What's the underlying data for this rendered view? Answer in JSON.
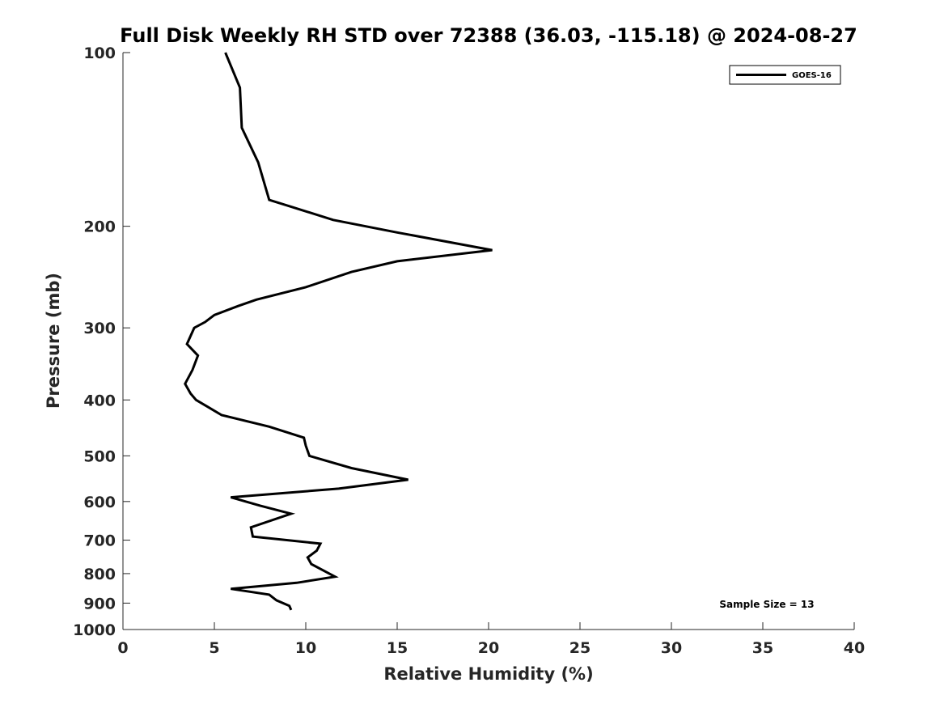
{
  "chart_data": {
    "type": "line",
    "title": "Full Disk Weekly RH STD over 72388 (36.03, -115.18) @ 2024-08-27",
    "xlabel": "Relative Humidity (%)",
    "ylabel": "Pressure (mb)",
    "xlim": [
      0,
      40
    ],
    "ylim": [
      100,
      1000
    ],
    "y_scale": "log",
    "y_reversed": true,
    "x_ticks": [
      0,
      5,
      10,
      15,
      20,
      25,
      30,
      35,
      40
    ],
    "y_ticks": [
      100,
      200,
      300,
      400,
      500,
      600,
      700,
      800,
      900,
      1000
    ],
    "legend_position": "top-right",
    "annotation": "Sample Size = 13",
    "series": [
      {
        "name": "GOES-16",
        "color": "#000000",
        "points": [
          [
            5.6,
            100
          ],
          [
            6.4,
            115
          ],
          [
            6.5,
            135
          ],
          [
            7.4,
            155
          ],
          [
            8.0,
            180
          ],
          [
            11.5,
            195
          ],
          [
            15.0,
            205
          ],
          [
            20.2,
            220
          ],
          [
            15.0,
            230
          ],
          [
            12.5,
            240
          ],
          [
            10.0,
            255
          ],
          [
            7.3,
            268
          ],
          [
            6.3,
            275
          ],
          [
            5.0,
            285
          ],
          [
            4.5,
            293
          ],
          [
            3.9,
            300
          ],
          [
            3.5,
            320
          ],
          [
            4.1,
            335
          ],
          [
            3.8,
            355
          ],
          [
            3.4,
            375
          ],
          [
            3.7,
            390
          ],
          [
            4.0,
            400
          ],
          [
            5.4,
            425
          ],
          [
            8.0,
            445
          ],
          [
            9.9,
            465
          ],
          [
            10.0,
            480
          ],
          [
            10.2,
            500
          ],
          [
            12.5,
            525
          ],
          [
            15.6,
            550
          ],
          [
            11.8,
            570
          ],
          [
            5.9,
            590
          ],
          [
            7.5,
            610
          ],
          [
            9.2,
            630
          ],
          [
            7.0,
            665
          ],
          [
            7.1,
            690
          ],
          [
            10.8,
            710
          ],
          [
            10.6,
            730
          ],
          [
            10.1,
            750
          ],
          [
            10.3,
            770
          ],
          [
            11.6,
            810
          ],
          [
            9.5,
            830
          ],
          [
            5.9,
            850
          ],
          [
            8.0,
            870
          ],
          [
            8.4,
            890
          ],
          [
            9.1,
            910
          ],
          [
            9.2,
            925
          ]
        ]
      }
    ]
  }
}
